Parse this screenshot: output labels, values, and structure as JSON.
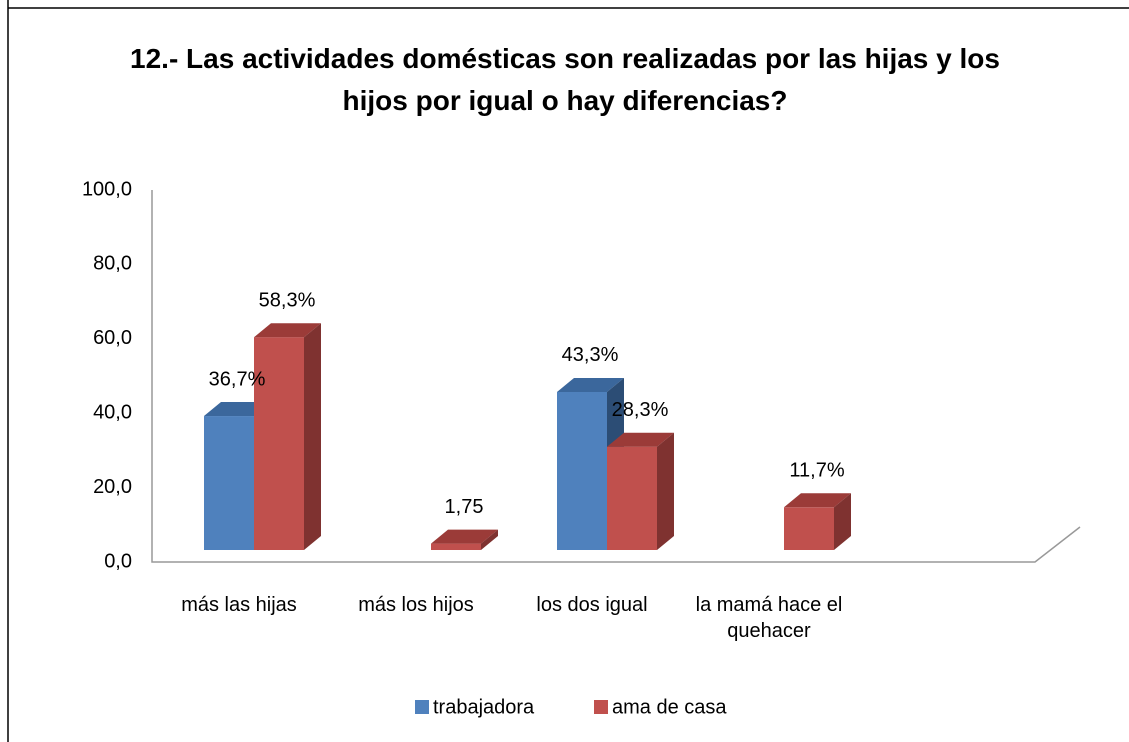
{
  "chart_data": {
    "type": "bar3d",
    "title": "12.- Las actividades domésticas son realizadas por las hijas y los hijos por igual o hay diferencias?",
    "categories": [
      "más las hijas",
      "más los hijos",
      "los dos igual",
      "la mamá hace el quehacer"
    ],
    "series": [
      {
        "name": "trabajadora",
        "color": "#4f81bd",
        "top_color": "#3b679c",
        "side_color": "#2c4d75",
        "values": [
          36.7,
          null,
          43.3,
          null
        ],
        "value_labels": [
          "36,7%",
          null,
          "43,3%",
          null
        ]
      },
      {
        "name": "ama de casa",
        "color": "#c0504d",
        "top_color": "#9b3b38",
        "side_color": "#7f3230",
        "values": [
          58.3,
          1.75,
          28.3,
          11.7
        ],
        "value_labels": [
          "58,3%",
          "1,75",
          "28,3%",
          "11,7%"
        ]
      }
    ],
    "ylim": [
      0,
      100
    ],
    "yticks": [
      {
        "value": 0,
        "label": "0,0"
      },
      {
        "value": 20,
        "label": "20,0"
      },
      {
        "value": 40,
        "label": "40,0"
      },
      {
        "value": 60,
        "label": "60,0"
      },
      {
        "value": 80,
        "label": "80,0"
      },
      {
        "value": 100,
        "label": "100,0"
      }
    ],
    "legend": "bottom"
  }
}
